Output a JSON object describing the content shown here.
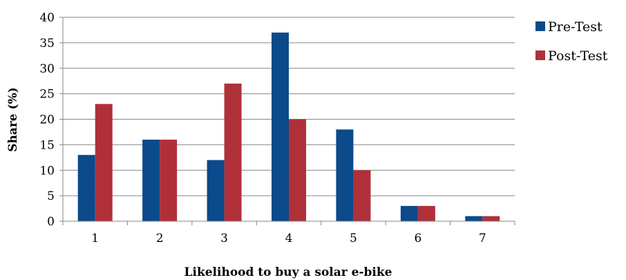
{
  "chart_data": {
    "type": "bar",
    "categories": [
      "1",
      "2",
      "3",
      "4",
      "5",
      "6",
      "7"
    ],
    "series": [
      {
        "name": "Pre-Test",
        "values": [
          13,
          16,
          12,
          37,
          18,
          3,
          1
        ],
        "color": "#0B4A8B"
      },
      {
        "name": "Post-Test",
        "values": [
          23,
          16,
          27,
          20,
          10,
          3,
          1
        ],
        "color": "#B0303A"
      }
    ],
    "xlabel": "Likelihood to buy a solar e-bike",
    "ylabel": "Share (%)",
    "ylim": [
      0,
      40
    ],
    "yticks": [
      0,
      5,
      10,
      15,
      20,
      25,
      30,
      35,
      40
    ],
    "grid": true,
    "legend_position": "right"
  }
}
